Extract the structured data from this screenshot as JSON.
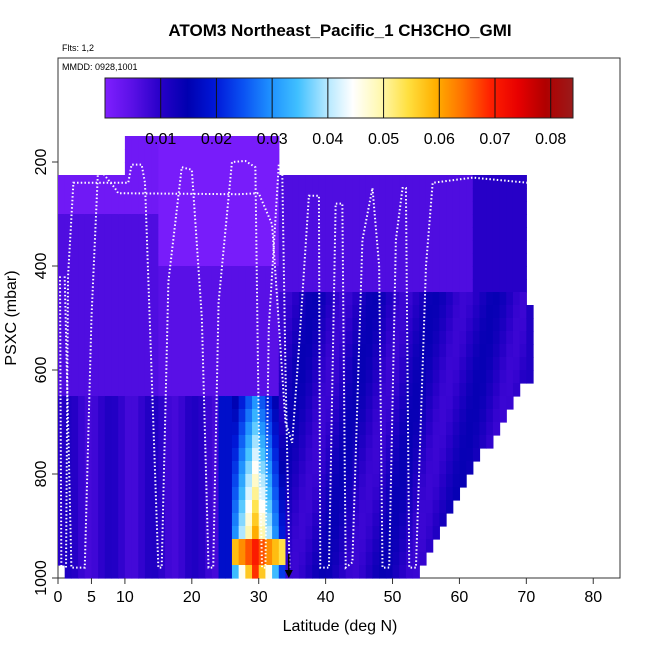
{
  "chart_data": {
    "type": "heatmap",
    "title": "ATOM3 Northeast_Pacific_1 CH3CHO_GMI",
    "flights_label": "Flts: 1,2",
    "date_label": "MMDD: 0928,1001",
    "xlabel": "Latitude (deg N)",
    "ylabel": "PSXC (mbar)",
    "xlim": [
      0,
      84
    ],
    "ylim": [
      1000,
      0
    ],
    "x_ticks": [
      0,
      5,
      10,
      20,
      30,
      40,
      50,
      60,
      70,
      80
    ],
    "y_ticks": [
      200,
      400,
      600,
      800,
      1000
    ],
    "colorbar": {
      "range": [
        0.0,
        0.084
      ],
      "tick_values": [
        0.01,
        0.02,
        0.03,
        0.04,
        0.05,
        0.06,
        0.07,
        0.08
      ],
      "tick_labels": [
        "0.01",
        "0.02",
        "0.03",
        "0.04",
        "0.05",
        "0.06",
        "0.07",
        "0.08"
      ],
      "colors": [
        "#7f1fff",
        "#5a10e6",
        "#2800c8",
        "#0000b0",
        "#0018d8",
        "#0a50f2",
        "#1e90ff",
        "#40c0ff",
        "#aee6ff",
        "#ffffff",
        "#fff8b0",
        "#ffe040",
        "#ffb000",
        "#ff7000",
        "#ff2000",
        "#e80000",
        "#b00000",
        "#9a1a1a"
      ]
    },
    "field_description_values": [
      {
        "lat_range": [
          0,
          15
        ],
        "pres_range": [
          200,
          650
        ],
        "value": 0.002
      },
      {
        "lat_range": [
          15,
          33
        ],
        "pres_range": [
          150,
          650
        ],
        "value": 0.001
      },
      {
        "lat_range": [
          33,
          70
        ],
        "pres_range": [
          210,
          450
        ],
        "value": 0.008
      },
      {
        "lat_range": [
          25,
          34
        ],
        "pres_range": [
          650,
          950
        ],
        "value": 0.045
      },
      {
        "lat_range": [
          25,
          34
        ],
        "pres_range": [
          930,
          980
        ],
        "value": 0.078
      }
    ],
    "flight_track_note": "white dotted flight-track profiles",
    "marker": {
      "lat": 34.5,
      "pres": 1000,
      "symbol": "arrow-down"
    }
  }
}
